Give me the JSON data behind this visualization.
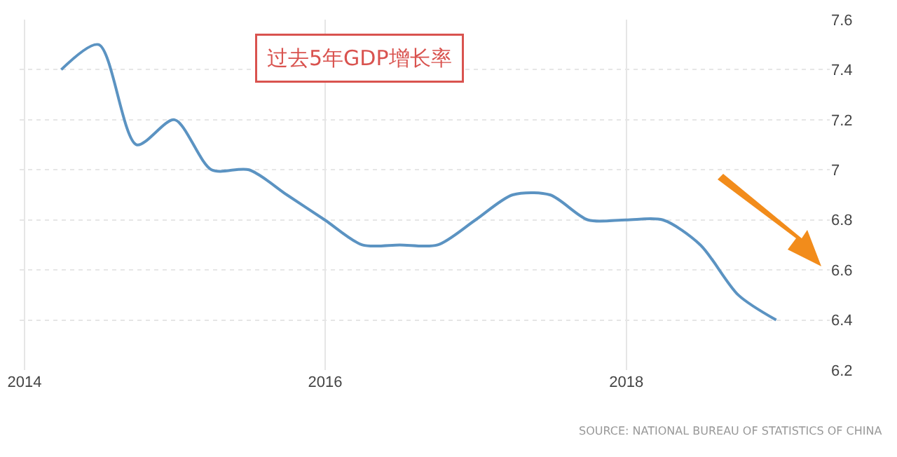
{
  "chart_data": {
    "type": "line",
    "title": "过去5年GDP增长率",
    "x": [
      "2014-03-31",
      "2014-06-30",
      "2014-09-30",
      "2014-12-31",
      "2015-03-31",
      "2015-06-30",
      "2015-09-30",
      "2015-12-31",
      "2016-03-31",
      "2016-06-30",
      "2016-09-30",
      "2016-12-31",
      "2017-03-31",
      "2017-06-30",
      "2017-09-30",
      "2017-12-31",
      "2018-03-31",
      "2018-06-30",
      "2018-09-30",
      "2018-12-31"
    ],
    "series": [
      {
        "color": "#5b93c2",
        "values": [
          7.4,
          7.5,
          7.1,
          7.2,
          7.0,
          7.0,
          6.9,
          6.8,
          6.7,
          6.7,
          6.7,
          6.8,
          6.9,
          6.9,
          6.8,
          6.8,
          6.8,
          6.7,
          6.5,
          6.4
        ]
      }
    ],
    "xlim": [
      "2013-12-20",
      "2019-05-10"
    ],
    "xticks": [
      {
        "value": "2014-01-01",
        "label": "2014"
      },
      {
        "value": "2016-01-01",
        "label": "2016"
      },
      {
        "value": "2018-01-01",
        "label": "2018"
      }
    ],
    "ylim": [
      6.2,
      7.6
    ],
    "yticks": [
      6.2,
      6.4,
      6.6,
      6.8,
      7,
      7.2,
      7.4,
      7.6
    ],
    "grid": true,
    "legend": false,
    "marker": "none",
    "line_style": "solid",
    "annotations": [
      "SOURCE: NATIONAL BUREAU OF STATISTICS OF CHINA"
    ]
  }
}
